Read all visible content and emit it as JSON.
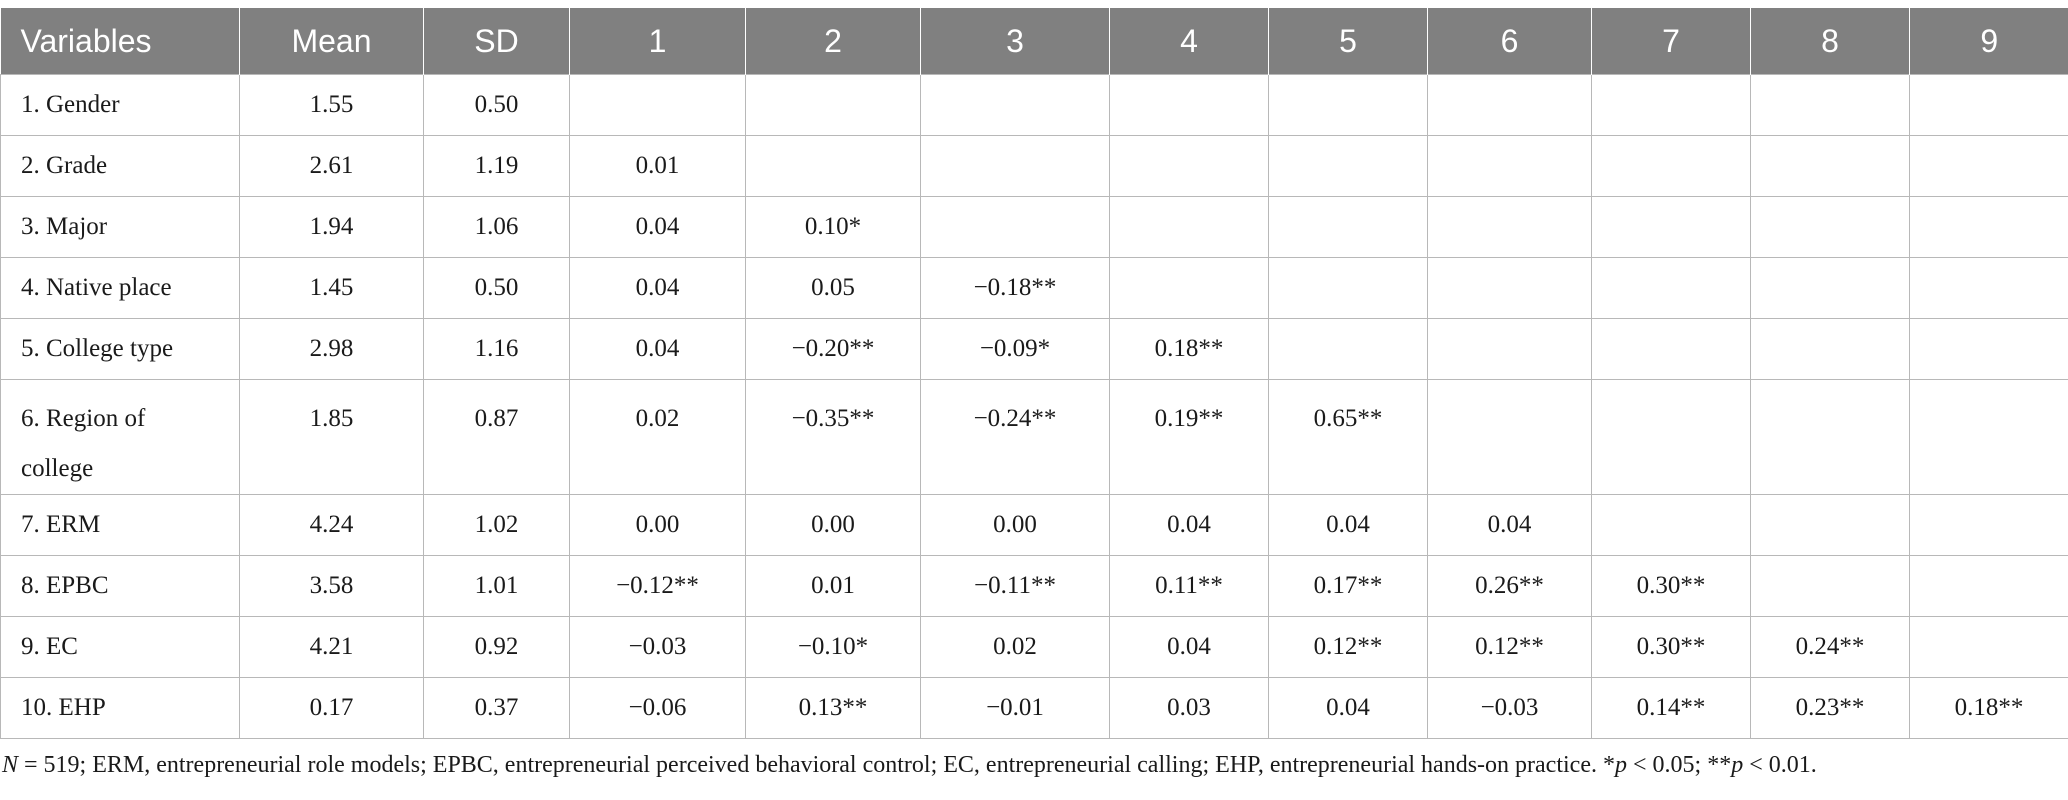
{
  "table": {
    "headers": [
      "Variables",
      "Mean",
      "SD",
      "1",
      "2",
      "3",
      "4",
      "5",
      "6",
      "7",
      "8",
      "9"
    ],
    "rows": [
      {
        "variable": "1. Gender",
        "mean": "1.55",
        "sd": "0.50",
        "c1": "",
        "c2": "",
        "c3": "",
        "c4": "",
        "c5": "",
        "c6": "",
        "c7": "",
        "c8": "",
        "c9": ""
      },
      {
        "variable": "2. Grade",
        "mean": "2.61",
        "sd": "1.19",
        "c1": "0.01",
        "c2": "",
        "c3": "",
        "c4": "",
        "c5": "",
        "c6": "",
        "c7": "",
        "c8": "",
        "c9": ""
      },
      {
        "variable": "3. Major",
        "mean": "1.94",
        "sd": "1.06",
        "c1": "0.04",
        "c2": "0.10*",
        "c3": "",
        "c4": "",
        "c5": "",
        "c6": "",
        "c7": "",
        "c8": "",
        "c9": ""
      },
      {
        "variable": "4. Native place",
        "mean": "1.45",
        "sd": "0.50",
        "c1": "0.04",
        "c2": "0.05",
        "c3": "−0.18**",
        "c4": "",
        "c5": "",
        "c6": "",
        "c7": "",
        "c8": "",
        "c9": ""
      },
      {
        "variable": "5. College type",
        "mean": "2.98",
        "sd": "1.16",
        "c1": "0.04",
        "c2": "−0.20**",
        "c3": "−0.09*",
        "c4": "0.18**",
        "c5": "",
        "c6": "",
        "c7": "",
        "c8": "",
        "c9": ""
      },
      {
        "variable": "6. Region of college",
        "mean": "1.85",
        "sd": "0.87",
        "c1": "0.02",
        "c2": "−0.35**",
        "c3": "−0.24**",
        "c4": "0.19**",
        "c5": "0.65**",
        "c6": "",
        "c7": "",
        "c8": "",
        "c9": ""
      },
      {
        "variable": "7. ERM",
        "mean": "4.24",
        "sd": "1.02",
        "c1": "0.00",
        "c2": "0.00",
        "c3": "0.00",
        "c4": "0.04",
        "c5": "0.04",
        "c6": "0.04",
        "c7": "",
        "c8": "",
        "c9": ""
      },
      {
        "variable": "8. EPBC",
        "mean": "3.58",
        "sd": "1.01",
        "c1": "−0.12**",
        "c2": "0.01",
        "c3": "−0.11**",
        "c4": "0.11**",
        "c5": "0.17**",
        "c6": "0.26**",
        "c7": "0.30**",
        "c8": "",
        "c9": ""
      },
      {
        "variable": "9. EC",
        "mean": "4.21",
        "sd": "0.92",
        "c1": "−0.03",
        "c2": "−0.10*",
        "c3": "0.02",
        "c4": "0.04",
        "c5": "0.12**",
        "c6": "0.12**",
        "c7": "0.30**",
        "c8": "0.24**",
        "c9": ""
      },
      {
        "variable": "10. EHP",
        "mean": "0.17",
        "sd": "0.37",
        "c1": "−0.06",
        "c2": "0.13**",
        "c3": "−0.01",
        "c4": "0.03",
        "c5": "0.04",
        "c6": "−0.03",
        "c7": "0.14**",
        "c8": "0.23**",
        "c9": "0.18**"
      }
    ]
  },
  "note": {
    "n_label": "N",
    "n_text": " = 519; ERM, entrepreneurial role models; EPBC, entrepreneurial perceived behavioral control; EC, entrepreneurial calling; EHP, entrepreneurial hands-on practice. *",
    "p1_label": "p",
    "p1_text": " < 0.05; **",
    "p2_label": "p",
    "p2_text": " < 0.01."
  }
}
